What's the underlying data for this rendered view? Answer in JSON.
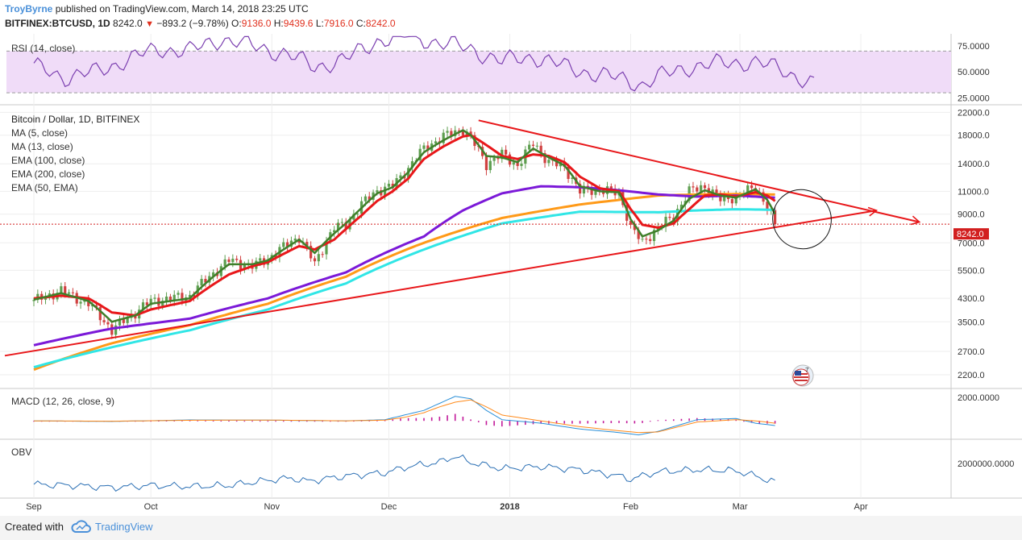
{
  "header": {
    "author": "TroyByrne",
    "published_text": "published on TradingView.com, March 14, 2018 23:25 UTC",
    "symbol": "BITFINEX:BTCUSD, 1D",
    "last": "8242.0",
    "change": "−893.2 (−9.78%)",
    "o_label": "O:",
    "o_value": "9136.0",
    "h_label": "H:",
    "h_value": "9439.6",
    "l_label": "L:",
    "l_value": "7916.0",
    "c_label": "C:",
    "c_value": "8242.0"
  },
  "footer": {
    "created_with": "Created with",
    "brand": "TradingView"
  },
  "colors": {
    "up": "#5d9e4f",
    "down": "#d04040",
    "ma5": "#3f7f2a",
    "ma13": "#e8171a",
    "ema100": "#ff9a18",
    "ema200": "#7b19d8",
    "ema50": "#30e6e6",
    "trend": "#e8171a",
    "rsi": "#7b3fb0",
    "rsi_band": "#f0dcf8",
    "macd": "#2a8fd8",
    "signal": "#ff8a1a",
    "hist": "#c21a9a",
    "obv": "#2a6fb4",
    "price_label": "#d21f1f"
  },
  "chart_data": [
    {
      "panel": "RSI",
      "type": "line",
      "label": "RSI (14, close)",
      "ylim": [
        20,
        85
      ],
      "bands": [
        30,
        70
      ],
      "yticks": [
        "75.0000",
        "50.0000",
        "25.0000"
      ],
      "ytick_values": [
        75,
        50,
        25
      ],
      "x_days": [
        0,
        8,
        16,
        24,
        32,
        40,
        48,
        56,
        64,
        72,
        80,
        88,
        96,
        104,
        112,
        120,
        128,
        136,
        144,
        152,
        156,
        160,
        168,
        176,
        184,
        192,
        200
      ],
      "values": [
        55,
        45,
        50,
        62,
        72,
        70,
        82,
        75,
        68,
        55,
        62,
        80,
        85,
        78,
        72,
        60,
        65,
        55,
        48,
        42,
        38,
        45,
        55,
        58,
        60,
        52,
        38
      ]
    },
    {
      "panel": "price",
      "type": "candlestick",
      "title": "Bitcoin / Dollar, 1D, BITFINEX",
      "legend": [
        "MA (5, close)",
        "MA (13, close)",
        "EMA (100, close)",
        "EMA (200, close)",
        "EMA (50, EMA)"
      ],
      "scale": "log",
      "ylim": [
        1950,
        23500
      ],
      "yticks": [
        "22000.0",
        "18000.0",
        "14000.0",
        "11000.0",
        "9000.0",
        "7000.0",
        "5500.0",
        "4300.0",
        "3500.0",
        "2700.0",
        "2200.0"
      ],
      "ytick_values": [
        22000,
        18000,
        14000,
        11000,
        9000,
        7000,
        5500,
        4300,
        3500,
        2700,
        2200
      ],
      "last_price_label": "8242.0",
      "last_price": 8242,
      "xticks": [
        "Sep",
        "Oct",
        "Nov",
        "Dec",
        "2018",
        "Feb",
        "Mar",
        "Apr"
      ],
      "xtick_days": [
        0,
        30,
        61,
        91,
        122,
        153,
        181,
        212
      ],
      "close_anchors_days": [
        0,
        7,
        14,
        20,
        26,
        30,
        40,
        50,
        56,
        60,
        68,
        72,
        77,
        80,
        84,
        88,
        92,
        96,
        100,
        105,
        110,
        112,
        116,
        120,
        124,
        128,
        132,
        136,
        140,
        145,
        150,
        153,
        156,
        160,
        164,
        168,
        172,
        176,
        180,
        185,
        188,
        190
      ],
      "close_anchors": [
        4200,
        4600,
        4100,
        3250,
        3800,
        4200,
        4400,
        6000,
        5700,
        6100,
        7400,
        5800,
        8000,
        8200,
        9800,
        11100,
        11500,
        13500,
        16000,
        17800,
        19000,
        17500,
        14000,
        15200,
        13800,
        16800,
        14200,
        13600,
        11000,
        11200,
        10800,
        8000,
        7000,
        8000,
        8800,
        11000,
        11500,
        10200,
        10500,
        11400,
        9600,
        8242
      ],
      "ma5_days": [
        0,
        7,
        14,
        20,
        26,
        30,
        40,
        50,
        56,
        60,
        68,
        72,
        77,
        80,
        84,
        88,
        92,
        96,
        100,
        105,
        110,
        112,
        116,
        120,
        124,
        128,
        132,
        136,
        140,
        145,
        150,
        153,
        156,
        160,
        164,
        168,
        172,
        176,
        180,
        185,
        188,
        190
      ],
      "ma5": [
        4250,
        4500,
        4200,
        3500,
        3700,
        4100,
        4300,
        5800,
        5800,
        6000,
        7200,
        6400,
        7600,
        8300,
        9500,
        10800,
        11400,
        13000,
        15500,
        17200,
        18800,
        18000,
        15000,
        14800,
        14200,
        16000,
        14800,
        13800,
        11500,
        11000,
        10900,
        8600,
        7400,
        7800,
        8500,
        10300,
        11100,
        10600,
        10400,
        11200,
        10200,
        9000
      ],
      "ma13_days": [
        0,
        7,
        14,
        20,
        26,
        30,
        40,
        50,
        56,
        60,
        68,
        72,
        77,
        80,
        84,
        88,
        92,
        96,
        100,
        105,
        110,
        112,
        116,
        120,
        124,
        128,
        132,
        136,
        140,
        145,
        150,
        153,
        156,
        160,
        164,
        168,
        172,
        176,
        180,
        185,
        188,
        190
      ],
      "ma13": [
        4300,
        4400,
        4300,
        3800,
        3700,
        3900,
        4200,
        5300,
        5700,
        5900,
        6800,
        6600,
        7200,
        7900,
        8900,
        10100,
        11000,
        12300,
        14600,
        16300,
        17800,
        18000,
        16500,
        15000,
        14600,
        15200,
        15000,
        14200,
        12500,
        11300,
        11000,
        9400,
        8200,
        8000,
        8300,
        9400,
        10600,
        10700,
        10500,
        10900,
        10600,
        10100
      ],
      "ema100_days": [
        0,
        20,
        40,
        60,
        80,
        100,
        120,
        140,
        160,
        170,
        180,
        190
      ],
      "ema100": [
        2300,
        2900,
        3400,
        4100,
        5200,
        7000,
        8700,
        9800,
        10600,
        10700,
        10750,
        10700
      ],
      "ema200_days": [
        0,
        20,
        40,
        60,
        80,
        100,
        110,
        120,
        130,
        140,
        150,
        160,
        170,
        180,
        190
      ],
      "ema200": [
        2850,
        3300,
        3600,
        4300,
        5400,
        7400,
        9300,
        10800,
        11500,
        11400,
        11100,
        10700,
        10500,
        10600,
        10400
      ],
      "ema50_days": [
        0,
        20,
        40,
        60,
        80,
        100,
        120,
        140,
        160,
        170,
        180,
        190
      ],
      "ema50": [
        2350,
        2800,
        3250,
        3900,
        4900,
        6600,
        8300,
        9200,
        9150,
        9300,
        9400,
        9350
      ],
      "trend_lower_days": [
        0,
        216
      ],
      "trend_lower": [
        2600,
        9300
      ],
      "trend_upper_days": [
        114,
        227
      ],
      "trend_upper": [
        20500,
        8400
      ]
    },
    {
      "panel": "MACD",
      "type": "line",
      "label": "MACD (12, 26, close, 9)",
      "ylim": [
        -1300,
        2500
      ],
      "ytick": "2000.0000",
      "ytick_value": 2000,
      "x_days": [
        0,
        20,
        40,
        60,
        80,
        90,
        95,
        100,
        104,
        108,
        112,
        116,
        120,
        130,
        140,
        150,
        155,
        160,
        170,
        180,
        185,
        190
      ],
      "macd": [
        0,
        -50,
        80,
        60,
        0,
        100,
        500,
        900,
        1500,
        2100,
        1900,
        900,
        100,
        -200,
        -700,
        -1000,
        -1200,
        -900,
        100,
        200,
        -200,
        -400
      ],
      "signal": [
        0,
        -30,
        50,
        70,
        0,
        60,
        300,
        700,
        1200,
        1600,
        1800,
        1200,
        500,
        0,
        -500,
        -850,
        -1000,
        -950,
        -100,
        100,
        0,
        -200
      ]
    },
    {
      "panel": "OBV",
      "type": "line",
      "label": "OBV",
      "ylim": [
        -1000000,
        4000000
      ],
      "ytick": "2000000.0000",
      "ytick_value": 2000000,
      "x_days": [
        0,
        10,
        20,
        30,
        40,
        50,
        60,
        66,
        70,
        80,
        90,
        96,
        104,
        108,
        112,
        120,
        130,
        140,
        150,
        153,
        160,
        170,
        180,
        185,
        190
      ],
      "values": [
        0,
        -100000,
        -300000,
        -100000,
        -200000,
        -100000,
        400000,
        600000,
        300000,
        800000,
        1100000,
        1700000,
        2100000,
        2700000,
        2100000,
        1500000,
        1700000,
        1400000,
        800000,
        500000,
        1200000,
        1400000,
        1300000,
        800000,
        200000
      ]
    }
  ]
}
